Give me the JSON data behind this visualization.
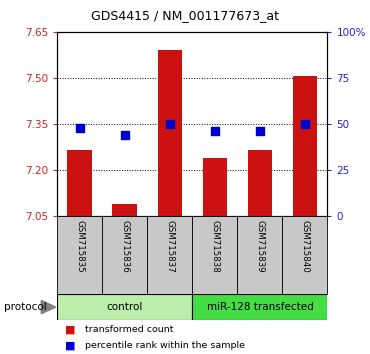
{
  "title": "GDS4415 / NM_001177673_at",
  "samples": [
    "GSM715835",
    "GSM715836",
    "GSM715837",
    "GSM715838",
    "GSM715839",
    "GSM715840"
  ],
  "transformed_counts": [
    7.265,
    7.09,
    7.59,
    7.24,
    7.265,
    7.505
  ],
  "percentile_ranks_pct": [
    48,
    44,
    50,
    46,
    46,
    50
  ],
  "ylim_left": [
    7.05,
    7.65
  ],
  "yticks_left": [
    7.05,
    7.2,
    7.35,
    7.5,
    7.65
  ],
  "yticks_right": [
    0,
    25,
    50,
    75,
    100
  ],
  "ylim_right": [
    0,
    100
  ],
  "bar_color": "#cc1111",
  "dot_color": "#0000cc",
  "bar_bottom": 7.05,
  "control_color": "#bbeeaa",
  "mir_color": "#44dd44",
  "background_color": "#ffffff",
  "tick_color_left": "#cc2222",
  "tick_color_right": "#2222cc",
  "bar_width": 0.55,
  "dot_size": 28
}
